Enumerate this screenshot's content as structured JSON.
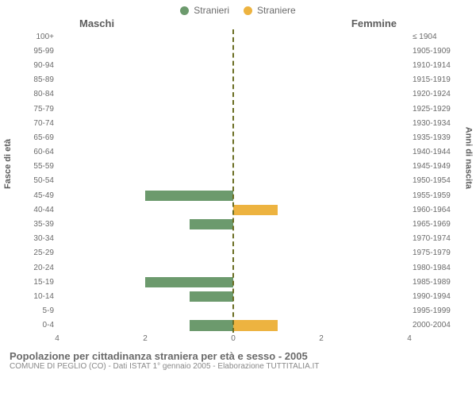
{
  "chart": {
    "type": "population-pyramid",
    "legend": {
      "male": {
        "label": "Stranieri",
        "color": "#6c9a6d"
      },
      "female": {
        "label": "Straniere",
        "color": "#edb340"
      }
    },
    "columns": {
      "left": "Maschi",
      "right": "Femmine"
    },
    "axis_labels": {
      "left": "Fasce di età",
      "right": "Anni di nascita"
    },
    "xlim": 4,
    "xticks": [
      -4,
      -2,
      0,
      2,
      4
    ],
    "xtick_labels": [
      "4",
      "2",
      "0",
      "2",
      "4"
    ],
    "center_line_color": "#6b6e23",
    "text_color": "#6b6b6b",
    "background": "#ffffff",
    "rows": [
      {
        "age": "100+",
        "birth": "≤ 1904",
        "m": 0,
        "f": 0
      },
      {
        "age": "95-99",
        "birth": "1905-1909",
        "m": 0,
        "f": 0
      },
      {
        "age": "90-94",
        "birth": "1910-1914",
        "m": 0,
        "f": 0
      },
      {
        "age": "85-89",
        "birth": "1915-1919",
        "m": 0,
        "f": 0
      },
      {
        "age": "80-84",
        "birth": "1920-1924",
        "m": 0,
        "f": 0
      },
      {
        "age": "75-79",
        "birth": "1925-1929",
        "m": 0,
        "f": 0
      },
      {
        "age": "70-74",
        "birth": "1930-1934",
        "m": 0,
        "f": 0
      },
      {
        "age": "65-69",
        "birth": "1935-1939",
        "m": 0,
        "f": 0
      },
      {
        "age": "60-64",
        "birth": "1940-1944",
        "m": 0,
        "f": 0
      },
      {
        "age": "55-59",
        "birth": "1945-1949",
        "m": 0,
        "f": 0
      },
      {
        "age": "50-54",
        "birth": "1950-1954",
        "m": 0,
        "f": 0
      },
      {
        "age": "45-49",
        "birth": "1955-1959",
        "m": 2,
        "f": 0
      },
      {
        "age": "40-44",
        "birth": "1960-1964",
        "m": 0,
        "f": 1
      },
      {
        "age": "35-39",
        "birth": "1965-1969",
        "m": 1,
        "f": 0
      },
      {
        "age": "30-34",
        "birth": "1970-1974",
        "m": 0,
        "f": 0
      },
      {
        "age": "25-29",
        "birth": "1975-1979",
        "m": 0,
        "f": 0
      },
      {
        "age": "20-24",
        "birth": "1980-1984",
        "m": 0,
        "f": 0
      },
      {
        "age": "15-19",
        "birth": "1985-1989",
        "m": 2,
        "f": 0
      },
      {
        "age": "10-14",
        "birth": "1990-1994",
        "m": 1,
        "f": 0
      },
      {
        "age": "5-9",
        "birth": "1995-1999",
        "m": 0,
        "f": 0
      },
      {
        "age": "0-4",
        "birth": "2000-2004",
        "m": 1,
        "f": 1
      }
    ]
  },
  "caption": {
    "title": "Popolazione per cittadinanza straniera per età e sesso - 2005",
    "subtitle": "COMUNE DI PEGLIO (CO) - Dati ISTAT 1° gennaio 2005 - Elaborazione TUTTITALIA.IT"
  }
}
